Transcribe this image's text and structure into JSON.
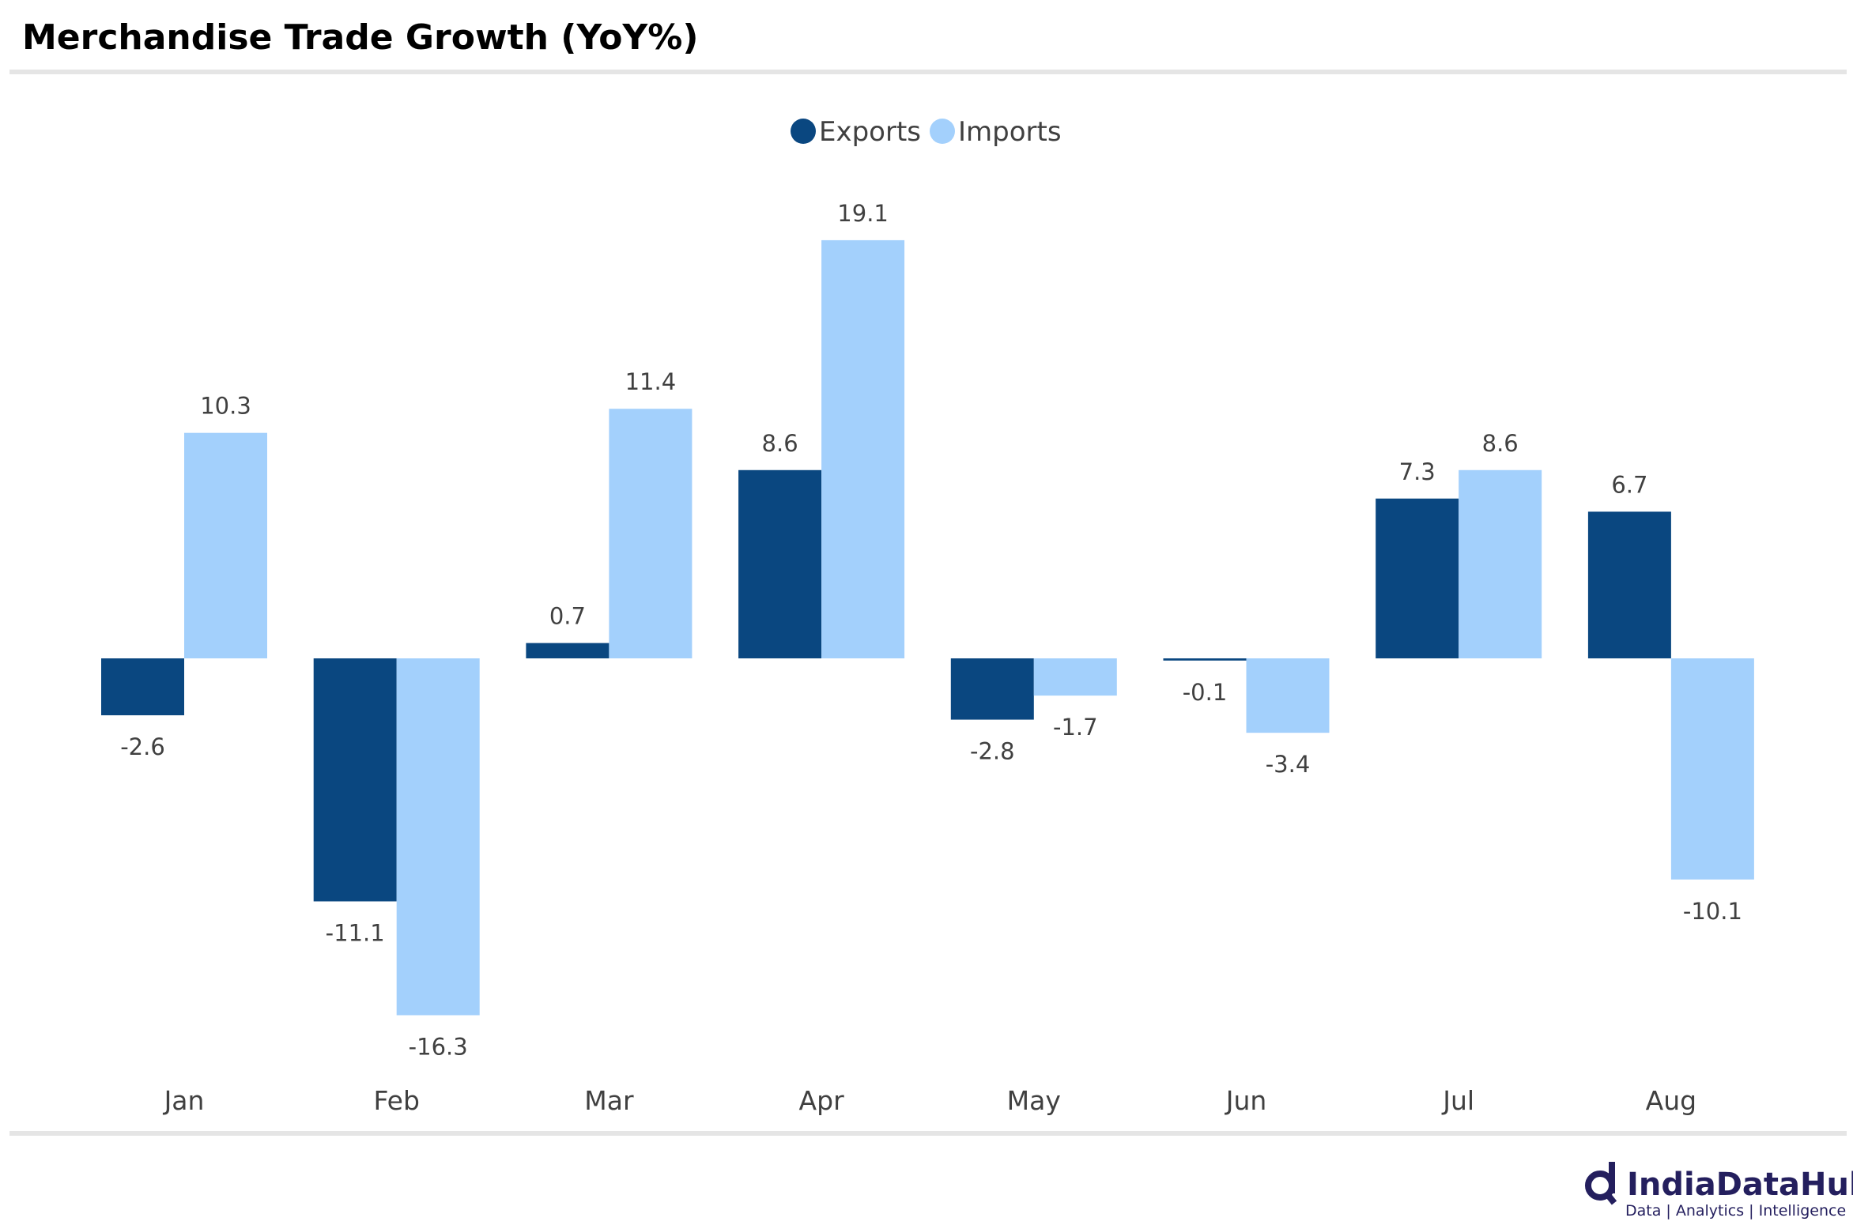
{
  "chart_data": {
    "type": "bar",
    "title": "Merchandise Trade Growth (YoY%)",
    "xlabel": "",
    "ylabel": "",
    "categories": [
      "Jan",
      "Feb",
      "Mar",
      "Apr",
      "May",
      "Jun",
      "Jul",
      "Aug"
    ],
    "series": [
      {
        "name": "Exports",
        "color": "#0a4780",
        "values": [
          -2.6,
          -11.1,
          0.7,
          8.6,
          -2.8,
          -0.1,
          7.3,
          6.7
        ]
      },
      {
        "name": "Imports",
        "color": "#a3d0fc",
        "values": [
          10.3,
          -16.3,
          11.4,
          19.1,
          -1.7,
          -3.4,
          8.6,
          -10.1
        ]
      }
    ],
    "ylim": [
      -20,
      22
    ],
    "grid": false,
    "legend": "top-center"
  },
  "branding": {
    "name": "IndiaDataHub",
    "tagline": "Data | Analytics | Intelligence",
    "color": "#241f5e"
  }
}
